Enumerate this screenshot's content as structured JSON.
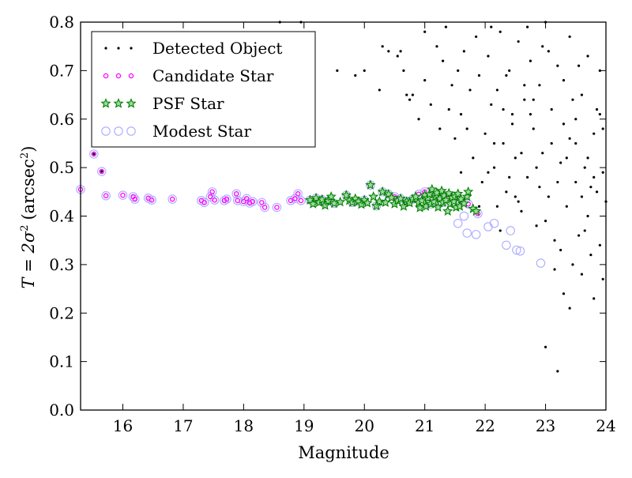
{
  "chart_data": {
    "type": "scatter",
    "title": "",
    "xlabel": "Magnitude",
    "ylabel_prefix": "T = 2σ",
    "ylabel_exp": "2",
    "ylabel_unit": "(arcsec",
    "ylabel_unit_exp": "2",
    "ylabel_close": ")",
    "xlim": [
      15.3,
      24.0
    ],
    "ylim": [
      0.0,
      0.8
    ],
    "xticks": [
      16,
      17,
      18,
      19,
      20,
      21,
      22,
      23,
      24
    ],
    "yticks": [
      0.0,
      0.1,
      0.2,
      0.3,
      0.4,
      0.5,
      0.6,
      0.7,
      0.8
    ],
    "legend_position": "top-left",
    "grid": false,
    "series": [
      {
        "name": "Detected Object",
        "marker": "dot",
        "color": "#000000",
        "points": [
          [
            15.52,
            0.528
          ],
          [
            15.65,
            0.492
          ],
          [
            18.6,
            0.8
          ],
          [
            18.95,
            0.8
          ],
          [
            19.55,
            0.7
          ],
          [
            19.85,
            0.69
          ],
          [
            20.0,
            0.7
          ],
          [
            20.25,
            0.66
          ],
          [
            20.3,
            0.75
          ],
          [
            20.4,
            0.74
          ],
          [
            20.55,
            0.73
          ],
          [
            20.6,
            0.74
          ],
          [
            20.65,
            0.7
          ],
          [
            20.7,
            0.65
          ],
          [
            20.75,
            0.64
          ],
          [
            20.8,
            0.65
          ],
          [
            20.9,
            0.6
          ],
          [
            21.0,
            0.68
          ],
          [
            21.0,
            0.78
          ],
          [
            21.1,
            0.63
          ],
          [
            21.2,
            0.75
          ],
          [
            21.25,
            0.58
          ],
          [
            21.3,
            0.72
          ],
          [
            21.35,
            0.79
          ],
          [
            21.4,
            0.62
          ],
          [
            21.45,
            0.67
          ],
          [
            21.5,
            0.56
          ],
          [
            21.55,
            0.7
          ],
          [
            21.6,
            0.61
          ],
          [
            21.65,
            0.74
          ],
          [
            21.7,
            0.58
          ],
          [
            21.75,
            0.66
          ],
          [
            21.8,
            0.52
          ],
          [
            21.85,
            0.77
          ],
          [
            21.9,
            0.69
          ],
          [
            21.95,
            0.47
          ],
          [
            22.0,
            0.57
          ],
          [
            22.05,
            0.73
          ],
          [
            22.1,
            0.63
          ],
          [
            22.15,
            0.5
          ],
          [
            22.2,
            0.66
          ],
          [
            22.25,
            0.78
          ],
          [
            22.3,
            0.55
          ],
          [
            22.35,
            0.45
          ],
          [
            22.4,
            0.7
          ],
          [
            22.45,
            0.61
          ],
          [
            22.5,
            0.52
          ],
          [
            22.55,
            0.76
          ],
          [
            22.6,
            0.41
          ],
          [
            22.65,
            0.64
          ],
          [
            22.7,
            0.48
          ],
          [
            22.75,
            0.72
          ],
          [
            22.8,
            0.58
          ],
          [
            22.85,
            0.38
          ],
          [
            22.9,
            0.67
          ],
          [
            22.95,
            0.53
          ],
          [
            23.0,
            0.8
          ],
          [
            23.0,
            0.13
          ],
          [
            23.05,
            0.44
          ],
          [
            23.1,
            0.62
          ],
          [
            23.15,
            0.35
          ],
          [
            23.2,
            0.08
          ],
          [
            23.2,
            0.71
          ],
          [
            23.25,
            0.51
          ],
          [
            23.3,
            0.24
          ],
          [
            23.3,
            0.59
          ],
          [
            23.35,
            0.42
          ],
          [
            23.4,
            0.21
          ],
          [
            23.4,
            0.77
          ],
          [
            23.45,
            0.3
          ],
          [
            23.5,
            0.55
          ],
          [
            23.5,
            0.47
          ],
          [
            23.55,
            0.36
          ],
          [
            23.6,
            0.65
          ],
          [
            23.6,
            0.28
          ],
          [
            23.65,
            0.5
          ],
          [
            23.7,
            0.4
          ],
          [
            23.7,
            0.73
          ],
          [
            23.75,
            0.32
          ],
          [
            23.8,
            0.57
          ],
          [
            23.8,
            0.23
          ],
          [
            23.85,
            0.45
          ],
          [
            23.9,
            0.61
          ],
          [
            23.9,
            0.34
          ],
          [
            23.95,
            0.49
          ],
          [
            23.95,
            0.27
          ],
          [
            22.1,
            0.79
          ],
          [
            22.3,
            0.62
          ],
          [
            22.5,
            0.44
          ],
          [
            22.7,
            0.79
          ],
          [
            22.9,
            0.46
          ],
          [
            23.1,
            0.55
          ],
          [
            23.3,
            0.68
          ],
          [
            23.5,
            0.6
          ],
          [
            23.7,
            0.52
          ],
          [
            23.9,
            0.7
          ],
          [
            22.2,
            0.42
          ],
          [
            22.4,
            0.48
          ],
          [
            22.6,
            0.53
          ],
          [
            22.8,
            0.64
          ],
          [
            23.0,
            0.39
          ],
          [
            23.2,
            0.47
          ],
          [
            23.4,
            0.56
          ],
          [
            23.6,
            0.44
          ],
          [
            23.8,
            0.48
          ],
          [
            24.0,
            0.43
          ],
          [
            22.05,
            0.49
          ],
          [
            22.25,
            0.37
          ],
          [
            22.45,
            0.59
          ],
          [
            22.65,
            0.67
          ],
          [
            22.85,
            0.5
          ],
          [
            23.05,
            0.74
          ],
          [
            23.25,
            0.33
          ],
          [
            23.45,
            0.64
          ],
          [
            23.65,
            0.37
          ],
          [
            23.85,
            0.62
          ],
          [
            21.6,
            0.49
          ],
          [
            21.9,
            0.42
          ],
          [
            22.15,
            0.55
          ],
          [
            22.35,
            0.69
          ],
          [
            22.55,
            0.43
          ],
          [
            22.75,
            0.61
          ],
          [
            22.95,
            0.75
          ],
          [
            23.15,
            0.29
          ],
          [
            23.35,
            0.52
          ],
          [
            23.55,
            0.71
          ],
          [
            23.75,
            0.46
          ],
          [
            23.95,
            0.58
          ]
        ]
      },
      {
        "name": "Candidate Star",
        "marker": "ring",
        "color": "#ff00ff",
        "points": [
          [
            15.3,
            0.455
          ],
          [
            15.52,
            0.528
          ],
          [
            15.65,
            0.492
          ],
          [
            15.72,
            0.442
          ],
          [
            16.0,
            0.443
          ],
          [
            16.17,
            0.44
          ],
          [
            16.2,
            0.435
          ],
          [
            16.42,
            0.437
          ],
          [
            16.48,
            0.433
          ],
          [
            16.82,
            0.435
          ],
          [
            17.3,
            0.432
          ],
          [
            17.35,
            0.428
          ],
          [
            17.45,
            0.44
          ],
          [
            17.48,
            0.45
          ],
          [
            17.52,
            0.433
          ],
          [
            17.68,
            0.432
          ],
          [
            17.72,
            0.435
          ],
          [
            17.88,
            0.446
          ],
          [
            17.9,
            0.432
          ],
          [
            18.0,
            0.43
          ],
          [
            18.05,
            0.436
          ],
          [
            18.1,
            0.427
          ],
          [
            18.15,
            0.43
          ],
          [
            18.3,
            0.428
          ],
          [
            18.35,
            0.418
          ],
          [
            18.55,
            0.418
          ],
          [
            18.78,
            0.432
          ],
          [
            18.85,
            0.436
          ],
          [
            18.9,
            0.446
          ],
          [
            18.95,
            0.432
          ],
          [
            20.5,
            0.44
          ],
          [
            20.7,
            0.43
          ],
          [
            20.9,
            0.445
          ],
          [
            21.0,
            0.45
          ],
          [
            21.2,
            0.44
          ],
          [
            21.4,
            0.44
          ],
          [
            21.6,
            0.43
          ],
          [
            21.72,
            0.425
          ],
          [
            21.88,
            0.405
          ]
        ]
      },
      {
        "name": "PSF Star",
        "marker": "star",
        "color": "#008000",
        "points": [
          [
            19.1,
            0.433
          ],
          [
            19.15,
            0.425
          ],
          [
            19.2,
            0.437
          ],
          [
            19.25,
            0.428
          ],
          [
            19.3,
            0.434
          ],
          [
            19.35,
            0.422
          ],
          [
            19.4,
            0.431
          ],
          [
            19.45,
            0.44
          ],
          [
            19.5,
            0.426
          ],
          [
            19.6,
            0.429
          ],
          [
            19.7,
            0.443
          ],
          [
            19.75,
            0.432
          ],
          [
            19.8,
            0.428
          ],
          [
            19.85,
            0.436
          ],
          [
            19.9,
            0.43
          ],
          [
            19.95,
            0.424
          ],
          [
            20.0,
            0.433
          ],
          [
            20.05,
            0.427
          ],
          [
            20.1,
            0.464
          ],
          [
            20.15,
            0.44
          ],
          [
            20.2,
            0.421
          ],
          [
            20.25,
            0.43
          ],
          [
            20.3,
            0.45
          ],
          [
            20.35,
            0.428
          ],
          [
            20.4,
            0.445
          ],
          [
            20.45,
            0.438
          ],
          [
            20.5,
            0.425
          ],
          [
            20.55,
            0.432
          ],
          [
            20.6,
            0.436
          ],
          [
            20.65,
            0.42
          ],
          [
            20.7,
            0.43
          ],
          [
            20.75,
            0.427
          ],
          [
            20.8,
            0.435
          ],
          [
            20.85,
            0.44
          ],
          [
            20.9,
            0.428
          ],
          [
            20.92,
            0.417
          ],
          [
            20.95,
            0.432
          ],
          [
            21.0,
            0.443
          ],
          [
            21.02,
            0.42
          ],
          [
            21.05,
            0.437
          ],
          [
            21.08,
            0.445
          ],
          [
            21.1,
            0.425
          ],
          [
            21.12,
            0.455
          ],
          [
            21.15,
            0.43
          ],
          [
            21.18,
            0.44
          ],
          [
            21.2,
            0.448
          ],
          [
            21.22,
            0.418
          ],
          [
            21.25,
            0.436
          ],
          [
            21.28,
            0.452
          ],
          [
            21.3,
            0.428
          ],
          [
            21.32,
            0.442
          ],
          [
            21.35,
            0.433
          ],
          [
            21.38,
            0.41
          ],
          [
            21.4,
            0.447
          ],
          [
            21.42,
            0.425
          ],
          [
            21.45,
            0.438
          ],
          [
            21.48,
            0.43
          ],
          [
            21.5,
            0.44
          ],
          [
            21.52,
            0.418
          ],
          [
            21.55,
            0.446
          ],
          [
            21.58,
            0.42
          ],
          [
            21.6,
            0.435
          ],
          [
            21.65,
            0.426
          ],
          [
            21.7,
            0.44
          ],
          [
            21.72,
            0.45
          ],
          [
            21.8,
            0.415
          ],
          [
            21.85,
            0.41
          ]
        ]
      },
      {
        "name": "Modest Star",
        "marker": "circle",
        "color": "#aaaaff",
        "points": [
          [
            15.3,
            0.455
          ],
          [
            15.52,
            0.528
          ],
          [
            15.65,
            0.492
          ],
          [
            15.72,
            0.442
          ],
          [
            16.0,
            0.443
          ],
          [
            16.17,
            0.44
          ],
          [
            16.2,
            0.435
          ],
          [
            16.42,
            0.437
          ],
          [
            16.48,
            0.433
          ],
          [
            16.82,
            0.435
          ],
          [
            17.3,
            0.432
          ],
          [
            17.35,
            0.428
          ],
          [
            17.45,
            0.44
          ],
          [
            17.48,
            0.45
          ],
          [
            17.52,
            0.433
          ],
          [
            17.68,
            0.432
          ],
          [
            17.72,
            0.435
          ],
          [
            17.88,
            0.446
          ],
          [
            17.9,
            0.432
          ],
          [
            18.0,
            0.43
          ],
          [
            18.05,
            0.436
          ],
          [
            18.1,
            0.427
          ],
          [
            18.15,
            0.43
          ],
          [
            18.3,
            0.428
          ],
          [
            18.35,
            0.418
          ],
          [
            18.55,
            0.418
          ],
          [
            18.78,
            0.432
          ],
          [
            18.85,
            0.436
          ],
          [
            18.9,
            0.446
          ],
          [
            18.95,
            0.432
          ],
          [
            19.1,
            0.433
          ],
          [
            19.2,
            0.437
          ],
          [
            19.3,
            0.434
          ],
          [
            19.4,
            0.431
          ],
          [
            19.5,
            0.426
          ],
          [
            19.7,
            0.443
          ],
          [
            19.8,
            0.428
          ],
          [
            19.9,
            0.43
          ],
          [
            20.0,
            0.433
          ],
          [
            20.1,
            0.464
          ],
          [
            20.2,
            0.421
          ],
          [
            20.3,
            0.45
          ],
          [
            20.4,
            0.445
          ],
          [
            20.5,
            0.44
          ],
          [
            20.6,
            0.436
          ],
          [
            20.7,
            0.43
          ],
          [
            20.8,
            0.435
          ],
          [
            20.9,
            0.445
          ],
          [
            21.0,
            0.45
          ],
          [
            21.1,
            0.425
          ],
          [
            21.2,
            0.44
          ],
          [
            21.3,
            0.428
          ],
          [
            21.4,
            0.44
          ],
          [
            21.5,
            0.44
          ],
          [
            21.55,
            0.385
          ],
          [
            21.6,
            0.43
          ],
          [
            21.65,
            0.4
          ],
          [
            21.7,
            0.365
          ],
          [
            21.72,
            0.425
          ],
          [
            21.85,
            0.362
          ],
          [
            21.88,
            0.405
          ],
          [
            22.05,
            0.378
          ],
          [
            22.15,
            0.385
          ],
          [
            22.35,
            0.34
          ],
          [
            22.42,
            0.37
          ],
          [
            22.52,
            0.33
          ],
          [
            22.58,
            0.328
          ],
          [
            22.92,
            0.303
          ]
        ]
      }
    ]
  }
}
